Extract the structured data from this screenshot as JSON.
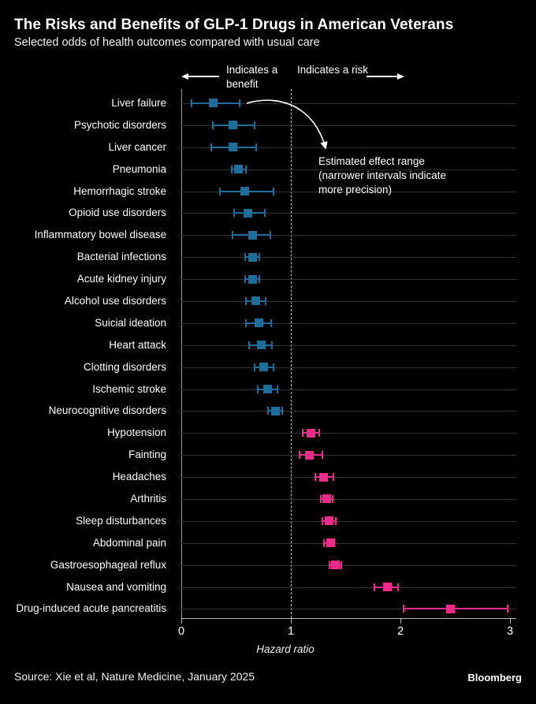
{
  "header": {
    "title": "The Risks and Benefits of GLP-1 Drugs in American Veterans",
    "subtitle": "Selected odds of health outcomes compared with usual care"
  },
  "annotations": {
    "benefit_direction": "Indicates a benefit",
    "risk_direction": "Indicates a risk",
    "effect_range_lines": [
      "Estimated effect range",
      "(narrower intervals indicate",
      "more precision)"
    ]
  },
  "chart_data": {
    "type": "scatter",
    "subtype": "forest-plot-error-bars",
    "title": "The Risks and Benefits of GLP-1 Drugs in American Veterans",
    "subtitle": "Selected odds of health outcomes compared with usual care",
    "xlabel": "Hazard ratio",
    "xlim": [
      0,
      3
    ],
    "xticks": [
      0,
      1,
      2,
      3
    ],
    "reference_line": 1,
    "grid": "horizontal-row-lines",
    "legend_position": "none",
    "benefit_color": "#1e6e9c",
    "risk_color": "#ee2a8b",
    "rows": [
      {
        "label": "Liver failure",
        "value": 0.29,
        "ci_low": 0.09,
        "ci_high": 0.53,
        "group": "benefit"
      },
      {
        "label": "Psychotic disorders",
        "value": 0.47,
        "ci_low": 0.29,
        "ci_high": 0.67,
        "group": "benefit"
      },
      {
        "label": "Liver cancer",
        "value": 0.47,
        "ci_low": 0.27,
        "ci_high": 0.68,
        "group": "benefit"
      },
      {
        "label": "Pneumonia",
        "value": 0.52,
        "ci_low": 0.46,
        "ci_high": 0.59,
        "group": "benefit"
      },
      {
        "label": "Hemorrhagic stroke",
        "value": 0.58,
        "ci_low": 0.35,
        "ci_high": 0.84,
        "group": "benefit"
      },
      {
        "label": "Opioid use disorders",
        "value": 0.61,
        "ci_low": 0.48,
        "ci_high": 0.76,
        "group": "benefit"
      },
      {
        "label": "Inflammatory bowel disease",
        "value": 0.65,
        "ci_low": 0.47,
        "ci_high": 0.81,
        "group": "benefit"
      },
      {
        "label": "Bacterial infections",
        "value": 0.65,
        "ci_low": 0.58,
        "ci_high": 0.71,
        "group": "benefit"
      },
      {
        "label": "Acute kidney injury",
        "value": 0.65,
        "ci_low": 0.58,
        "ci_high": 0.71,
        "group": "benefit"
      },
      {
        "label": "Alcohol use disorders",
        "value": 0.68,
        "ci_low": 0.59,
        "ci_high": 0.77,
        "group": "benefit"
      },
      {
        "label": "Suicial ideation",
        "value": 0.71,
        "ci_low": 0.59,
        "ci_high": 0.82,
        "group": "benefit"
      },
      {
        "label": "Heart attack",
        "value": 0.73,
        "ci_low": 0.62,
        "ci_high": 0.83,
        "group": "benefit"
      },
      {
        "label": "Clotting disorders",
        "value": 0.75,
        "ci_low": 0.67,
        "ci_high": 0.84,
        "group": "benefit"
      },
      {
        "label": "Ischemic stroke",
        "value": 0.79,
        "ci_low": 0.7,
        "ci_high": 0.88,
        "group": "benefit"
      },
      {
        "label": "Neurocognitive disorders",
        "value": 0.86,
        "ci_low": 0.79,
        "ci_high": 0.92,
        "group": "benefit"
      },
      {
        "label": "Hypotension",
        "value": 1.18,
        "ci_low": 1.11,
        "ci_high": 1.26,
        "group": "risk"
      },
      {
        "label": "Fainting",
        "value": 1.17,
        "ci_low": 1.08,
        "ci_high": 1.29,
        "group": "risk"
      },
      {
        "label": "Headaches",
        "value": 1.3,
        "ci_low": 1.22,
        "ci_high": 1.39,
        "group": "risk"
      },
      {
        "label": "Arthritis",
        "value": 1.33,
        "ci_low": 1.27,
        "ci_high": 1.38,
        "group": "risk"
      },
      {
        "label": "Sleep disturbances",
        "value": 1.35,
        "ci_low": 1.29,
        "ci_high": 1.41,
        "group": "risk"
      },
      {
        "label": "Abdominal pain",
        "value": 1.36,
        "ci_low": 1.3,
        "ci_high": 1.39,
        "group": "risk"
      },
      {
        "label": "Gastroesophageal reflux",
        "value": 1.41,
        "ci_low": 1.35,
        "ci_high": 1.46,
        "group": "risk"
      },
      {
        "label": "Nausea and vomiting",
        "value": 1.88,
        "ci_low": 1.76,
        "ci_high": 1.98,
        "group": "risk"
      },
      {
        "label": "Drug-induced acute pancreatitis",
        "value": 2.46,
        "ci_low": 2.03,
        "ci_high": 2.98,
        "group": "risk"
      }
    ]
  },
  "footer": {
    "source": "Source: Xie et al, Nature Medicine, January 2025",
    "brand": "Bloomberg"
  }
}
